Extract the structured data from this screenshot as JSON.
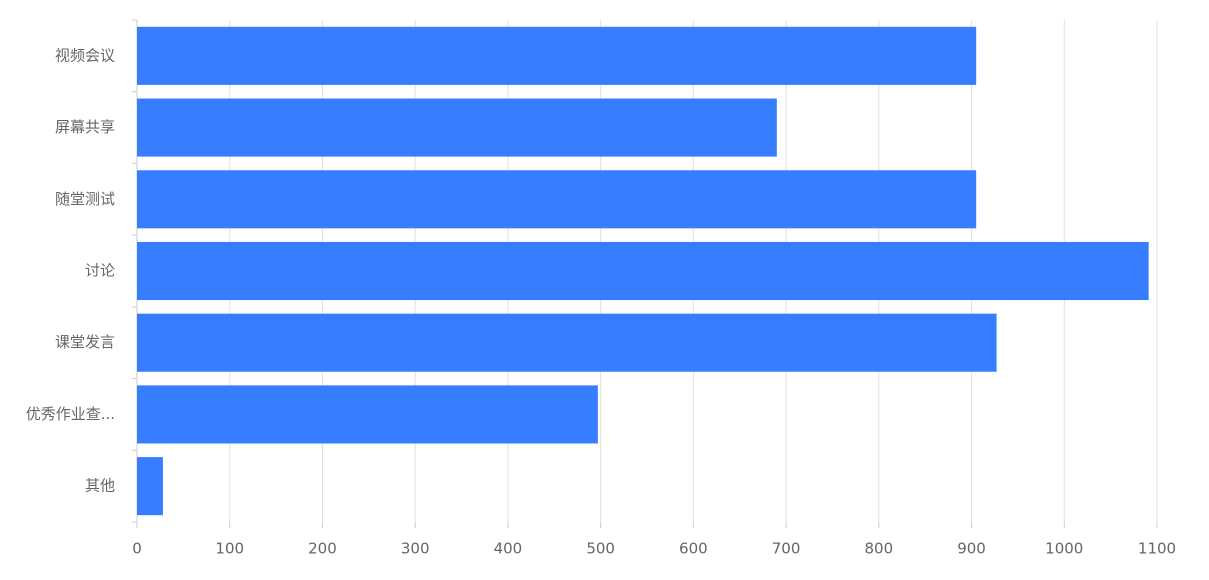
{
  "chart_data": {
    "type": "hbar",
    "categories": [
      "视频会议",
      "屏幕共享",
      "随堂测试",
      "讨论",
      "课堂发言",
      "优秀作业查...",
      "其他"
    ],
    "values": [
      905,
      690,
      905,
      1091,
      927,
      497,
      28
    ],
    "color": "#377dff",
    "xlim": [
      0,
      1100
    ],
    "xticks": [
      0,
      100,
      200,
      300,
      400,
      500,
      600,
      700,
      800,
      900,
      1000,
      1100
    ],
    "grid": true
  }
}
